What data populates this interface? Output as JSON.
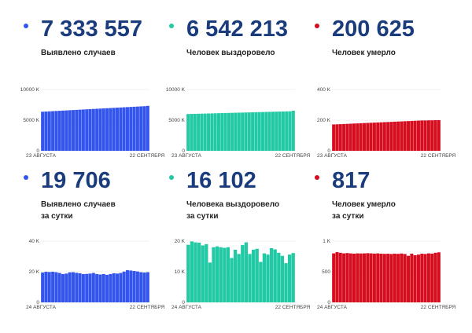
{
  "colors": {
    "cases": "#3355ee",
    "recovered": "#22c9a5",
    "deaths": "#d50d1e",
    "number": "#1a3c7c"
  },
  "panels": [
    {
      "value": "7 333 557",
      "label": [
        "Выявлено случаев"
      ],
      "color": "#3355ee"
    },
    {
      "value": "6 542 213",
      "label": [
        "Человек выздоровело"
      ],
      "color": "#22c9a5"
    },
    {
      "value": "200 625",
      "label": [
        "Человек умерло"
      ],
      "color": "#d50d1e"
    },
    {
      "value": "19 706",
      "label": [
        "Выявлено случаев",
        "за сутки"
      ],
      "color": "#3355ee"
    },
    {
      "value": "16 102",
      "label": [
        "Человека выздоровело",
        "за сутки"
      ],
      "color": "#22c9a5"
    },
    {
      "value": "817",
      "label": [
        "Человек умерло",
        "за сутки"
      ],
      "color": "#d50d1e"
    }
  ],
  "chart_data": [
    {
      "type": "bar",
      "ylim": [
        0,
        10000
      ],
      "yticks": [
        "10000 K",
        "5000 K",
        "0"
      ],
      "xtick_labels": [
        "23 АВГУСТА",
        "22 СЕНТЯБРЯ"
      ],
      "series": [
        {
          "values": [
            6380,
            6410,
            6440,
            6470,
            6500,
            6530,
            6560,
            6590,
            6620,
            6650,
            6680,
            6710,
            6740,
            6770,
            6800,
            6830,
            6860,
            6890,
            6920,
            6950,
            6980,
            7010,
            7040,
            7070,
            7100,
            7130,
            7160,
            7190,
            7220,
            7250,
            7280,
            7333
          ]
        }
      ]
    },
    {
      "type": "bar",
      "ylim": [
        0,
        10000
      ],
      "yticks": [
        "10000 K",
        "5000 K",
        "0"
      ],
      "xtick_labels": [
        "23 АВГУСТА",
        "22 СЕНТЯБРЯ"
      ],
      "series": [
        {
          "values": [
            6000,
            6015,
            6030,
            6045,
            6060,
            6075,
            6090,
            6105,
            6120,
            6135,
            6150,
            6165,
            6180,
            6195,
            6210,
            6225,
            6240,
            6255,
            6270,
            6285,
            6300,
            6315,
            6330,
            6345,
            6360,
            6375,
            6390,
            6405,
            6420,
            6435,
            6450,
            6542
          ]
        }
      ]
    },
    {
      "type": "bar",
      "ylim": [
        0,
        400
      ],
      "yticks": [
        "400 K",
        "200 K",
        "0"
      ],
      "xtick_labels": [
        "23 АВГУСТА",
        "22 СЕНТЯБРЯ"
      ],
      "series": [
        {
          "values": [
            172,
            173,
            174,
            175,
            176,
            177,
            178,
            179,
            180,
            181,
            182,
            183,
            184,
            185,
            186,
            187,
            188,
            189,
            190,
            191,
            192,
            193,
            194,
            195,
            196,
            197,
            198,
            198,
            199,
            199,
            200,
            200
          ]
        }
      ]
    },
    {
      "type": "bar",
      "ylim": [
        0,
        40000
      ],
      "yticks": [
        "40 K",
        "20 K",
        "0"
      ],
      "xtick_labels": [
        "24 АВГУСТА",
        "22 СЕНТЯБРЯ"
      ],
      "series": [
        {
          "values": [
            19500,
            20000,
            19800,
            20000,
            19700,
            19200,
            18500,
            18800,
            19600,
            19700,
            19300,
            19000,
            18500,
            18600,
            18800,
            19200,
            18500,
            18200,
            18500,
            18000,
            18500,
            19000,
            18800,
            19200,
            20100,
            21000,
            20800,
            20500,
            20200,
            19700,
            19500,
            19706
          ]
        }
      ]
    },
    {
      "type": "bar",
      "ylim": [
        0,
        20000
      ],
      "yticks": [
        "20 K",
        "10 K",
        "0"
      ],
      "xtick_labels": [
        "24 АВГУСТА",
        "22 СЕНТЯБРЯ"
      ],
      "series": [
        {
          "values": [
            18800,
            19900,
            19600,
            19500,
            18600,
            19000,
            13000,
            18000,
            18300,
            18000,
            17800,
            18000,
            14500,
            17200,
            15800,
            18700,
            19600,
            15800,
            17200,
            17500,
            13200,
            16000,
            15600,
            17700,
            17300,
            16200,
            15200,
            12800,
            15600,
            16102
          ]
        }
      ]
    },
    {
      "type": "bar",
      "ylim": [
        0,
        1000
      ],
      "yticks": [
        "1 K",
        "500",
        "0"
      ],
      "xtick_labels": [
        "24 АВГУСТА",
        "22 СЕНТЯБРЯ"
      ],
      "series": [
        {
          "values": [
            800,
            820,
            810,
            800,
            805,
            800,
            795,
            800,
            798,
            800,
            803,
            800,
            796,
            800,
            795,
            792,
            794,
            790,
            795,
            792,
            798,
            790,
            760,
            795,
            770,
            780,
            795,
            790,
            800,
            795,
            810,
            817
          ]
        }
      ]
    }
  ]
}
